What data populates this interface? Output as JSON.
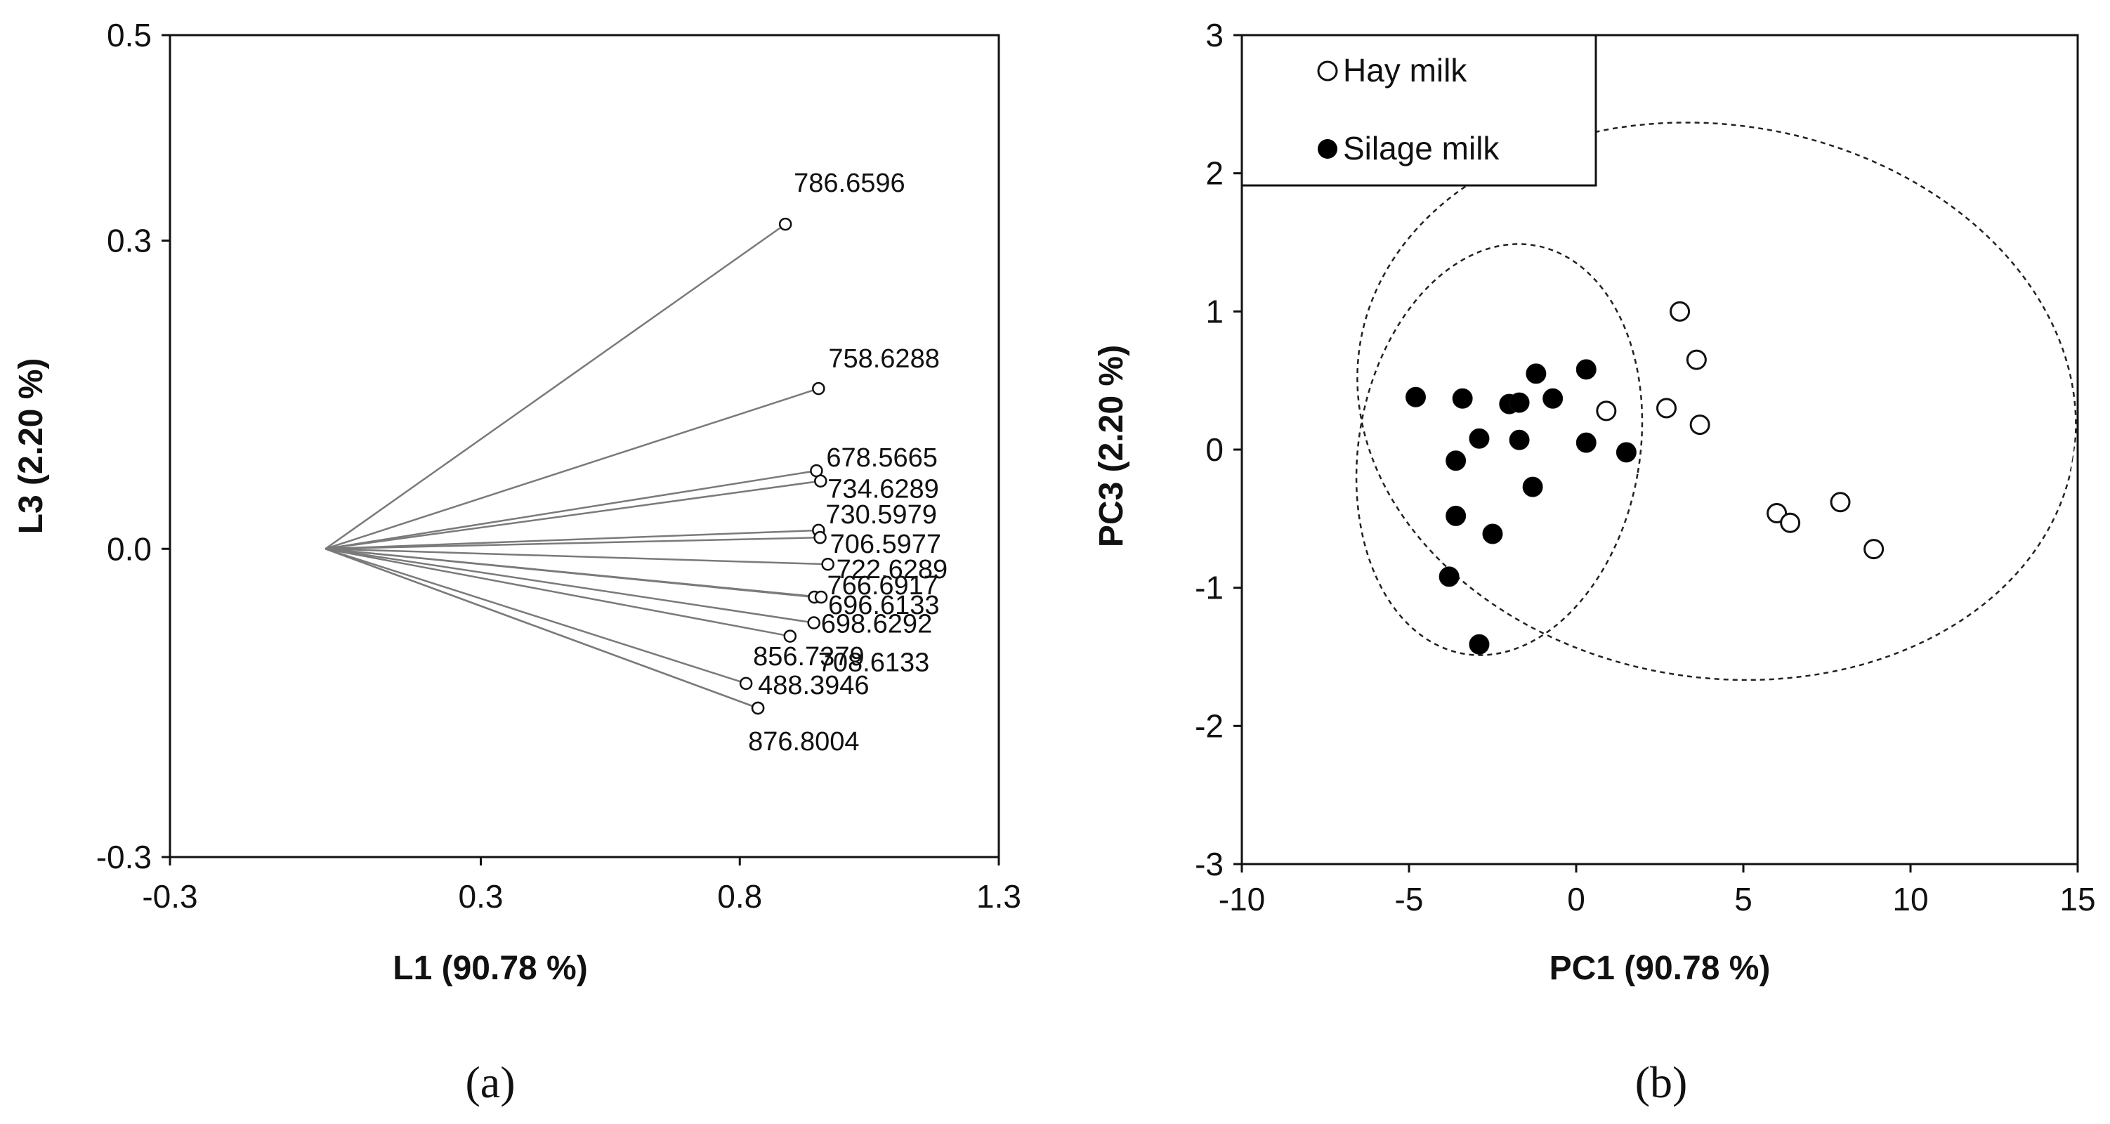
{
  "chart_data": [
    {
      "type": "scatter",
      "panel_caption": "(a)",
      "xlabel": "L1 (90.78 %)",
      "ylabel": "L3 (2.20 %)",
      "xlim": [
        -0.3,
        1.3
      ],
      "ylim": [
        -0.3,
        0.5
      ],
      "xticks": [
        "-0.3",
        "0.3",
        "0.8",
        "1.3"
      ],
      "xtick_values": [
        -0.3,
        0.3,
        0.8,
        1.3
      ],
      "yticks": [
        "-0.3",
        "0.0",
        "0.3",
        "0.5"
      ],
      "ytick_values": [
        -0.3,
        0.0,
        0.3,
        0.5
      ],
      "origin": [
        0.0,
        0.0
      ],
      "loadings": [
        {
          "label": "786.6596",
          "x": 0.888,
          "y": 0.316
        },
        {
          "label": "758.6288",
          "x": 0.952,
          "y": 0.156
        },
        {
          "label": "678.5665",
          "x": 0.948,
          "y": 0.076
        },
        {
          "label": "734.6289",
          "x": 0.956,
          "y": 0.066
        },
        {
          "label": "730.5979",
          "x": 0.952,
          "y": 0.018
        },
        {
          "label": "706.5977",
          "x": 0.955,
          "y": 0.011
        },
        {
          "label": "722.6289",
          "x": 0.97,
          "y": -0.015
        },
        {
          "label": "766.6917",
          "x": 0.944,
          "y": -0.047
        },
        {
          "label": "696.6133",
          "x": 0.957,
          "y": -0.047
        },
        {
          "label": "698.6292",
          "x": 0.943,
          "y": -0.072
        },
        {
          "label": "708.6133",
          "x": 0.897,
          "y": -0.085
        },
        {
          "label": "856.7379",
          "x": 0.812,
          "y": -0.131
        },
        {
          "label": "488.3946",
          "x": 0.835,
          "y": -0.155
        },
        {
          "label": "876.8004",
          "x": 0.835,
          "y": -0.155
        }
      ]
    },
    {
      "type": "scatter",
      "panel_caption": "(b)",
      "xlabel": "PC1 (90.78 %)",
      "ylabel": "PC3 (2.20 %)",
      "xlim": [
        -10,
        15
      ],
      "ylim": [
        -3,
        3
      ],
      "xticks": [
        "-10",
        "-5",
        "0",
        "5",
        "10",
        "15"
      ],
      "xtick_values": [
        -10,
        -5,
        0,
        5,
        10,
        15
      ],
      "yticks": [
        "-3",
        "-2",
        "-1",
        "0",
        "1",
        "2",
        "3"
      ],
      "ytick_values": [
        -3,
        -2,
        -1,
        0,
        1,
        2,
        3
      ],
      "legend_position": "top-left",
      "series": [
        {
          "name": "Hay milk",
          "marker": "open-circle",
          "points": [
            [
              3.1,
              1.0
            ],
            [
              3.6,
              0.65
            ],
            [
              2.7,
              0.3
            ],
            [
              0.9,
              0.28
            ],
            [
              3.7,
              0.18
            ],
            [
              7.9,
              -0.38
            ],
            [
              6.0,
              -0.46
            ],
            [
              6.4,
              -0.53
            ],
            [
              8.9,
              -0.72
            ]
          ]
        },
        {
          "name": "Silage milk",
          "marker": "filled-circle",
          "points": [
            [
              -1.2,
              0.55
            ],
            [
              0.3,
              0.58
            ],
            [
              -4.8,
              0.38
            ],
            [
              -3.4,
              0.37
            ],
            [
              -2.0,
              0.33
            ],
            [
              -1.7,
              0.34
            ],
            [
              -0.7,
              0.37
            ],
            [
              -2.9,
              0.08
            ],
            [
              -1.7,
              0.07
            ],
            [
              0.3,
              0.05
            ],
            [
              1.5,
              -0.02
            ],
            [
              -3.6,
              -0.08
            ],
            [
              -1.3,
              -0.27
            ],
            [
              -3.6,
              -0.48
            ],
            [
              -2.5,
              -0.61
            ],
            [
              -3.8,
              -0.92
            ],
            [
              -2.9,
              -1.41
            ]
          ]
        }
      ],
      "confidence_ellipses": [
        {
          "group": "Silage milk",
          "style": "dashed",
          "center": [
            -2.3,
            0.0
          ],
          "semi_axes": [
            4.2,
            1.5
          ],
          "rotation_deg": -10
        },
        {
          "group": "Hay milk",
          "style": "dashed",
          "center": [
            4.2,
            0.35
          ],
          "semi_axes": [
            10.8,
            2.0
          ],
          "rotation_deg": -9
        }
      ]
    }
  ]
}
